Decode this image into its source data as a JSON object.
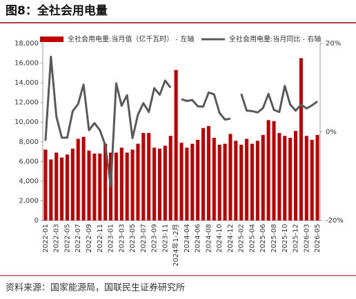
{
  "chart_data": {
    "type": "bar-line",
    "title": "图8：全社会用电量",
    "source": "资料来源：国家能源局，国联民生证券研究所",
    "categories": [
      "2022-01",
      null,
      "2022-03",
      null,
      "2022-05",
      null,
      "2022-07",
      null,
      "2022-09",
      null,
      "2022-11",
      null,
      "2023-01",
      null,
      "2023-03",
      null,
      "2023-05",
      null,
      "2023-07",
      null,
      "2023-09",
      null,
      "2023-11",
      null,
      "2024年1-2月",
      null,
      "2024-04",
      null,
      "2024-06",
      null,
      "2024-08",
      null,
      "2024-10",
      null,
      "2024-12",
      null,
      "2025-02",
      null,
      "2025-04",
      null,
      "2025-06",
      null,
      "2025-08",
      null,
      "2025-10",
      null,
      "2025-12",
      null,
      "2026-03",
      null,
      "2026-05"
    ],
    "series": [
      {
        "name": "全社会用电量:当月值（亿千瓦时） - 左轴",
        "type": "bar",
        "color": "#c00000",
        "values": [
          7200,
          6200,
          6900,
          6400,
          6700,
          7300,
          8300,
          8500,
          7100,
          6800,
          6800,
          7800,
          6900,
          6900,
          7400,
          6900,
          7200,
          7800,
          8900,
          8900,
          7400,
          7300,
          7600,
          8600,
          15300,
          7900,
          7400,
          7800,
          8200,
          9400,
          9600,
          8400,
          7700,
          7800,
          8800,
          8100,
          7700,
          8300,
          7800,
          8100,
          8700,
          10200,
          10100,
          8900,
          8600,
          8400,
          9100,
          16500,
          8600,
          8200,
          8700
        ]
      },
      {
        "name": "全社会用电量:当月同比 - 右轴",
        "type": "line",
        "axis": "y2",
        "color": "#595959",
        "values": [
          -2.0,
          17.0,
          3.5,
          -1.3,
          -1.3,
          4.7,
          6.3,
          10.7,
          0.4,
          2.0,
          0.4,
          -3.0,
          -12.3,
          11.0,
          5.9,
          8.3,
          -1.4,
          3.9,
          6.5,
          4.5,
          9.9,
          8.4,
          11.6,
          10.0,
          null,
          7.4,
          7.0,
          7.2,
          5.8,
          5.7,
          8.9,
          8.5,
          4.3,
          2.8,
          3.0,
          null,
          8.6,
          4.8,
          4.7,
          4.4,
          5.4,
          8.6,
          5.0,
          4.5,
          10.4,
          6.2,
          4.8,
          6.2,
          5.3,
          6.0,
          6.9
        ]
      }
    ],
    "ylim": [
      0,
      18000
    ],
    "yticks": [
      0,
      {
        "value": 2000,
        "label": "2,000"
      },
      {
        "value": 4000,
        "label": "4,000"
      },
      {
        "value": 6000,
        "label": "6,000"
      },
      {
        "value": 8000,
        "label": "8,000"
      },
      {
        "value": 10000,
        "label": "10,000"
      },
      {
        "value": 12000,
        "label": "12,000"
      },
      {
        "value": 14000,
        "label": "14,000"
      },
      {
        "value": 16000,
        "label": "16,000"
      },
      {
        "value": 18000,
        "label": "18,000"
      }
    ],
    "y2lim": [
      -20,
      20
    ],
    "y2ticks": [
      {
        "value": -20,
        "label": "-20%"
      },
      {
        "value": 0,
        "label": "0%"
      },
      {
        "value": 20,
        "label": "20%"
      }
    ],
    "legend": "top"
  }
}
